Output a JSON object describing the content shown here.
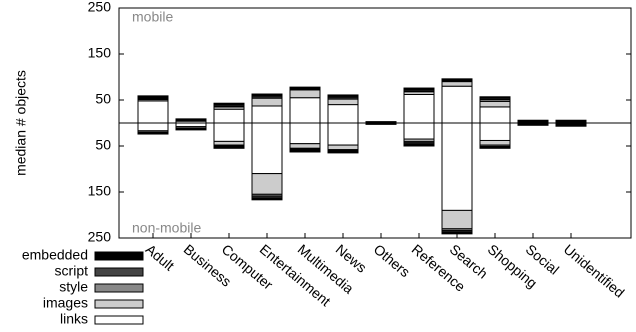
{
  "chart_data": {
    "type": "diverging-stacked-bar",
    "y_label": "median # objects",
    "annotations": [
      "mobile",
      "non-mobile"
    ],
    "categories": [
      "Adult",
      "Business",
      "Computer",
      "Entertainment",
      "Multimedia",
      "News",
      "Others",
      "Reference",
      "Search",
      "Shopping",
      "Social",
      "Unidentified"
    ],
    "ylim": [
      -250,
      250
    ],
    "yticks": [
      {
        "value": -250,
        "label": "250"
      },
      {
        "value": -150,
        "label": "150"
      },
      {
        "value": -50,
        "label": "50"
      },
      50,
      150,
      250
    ],
    "series": [
      {
        "name": "links",
        "color": "#ffffff",
        "values": [
          48,
          4,
          30,
          37,
          55,
          40,
          1,
          62,
          80,
          35,
          1,
          1
        ],
        "values_non_mobile": [
          -17,
          -8,
          -40,
          -110,
          -45,
          -48,
          -1,
          -35,
          -190,
          -38,
          -1,
          -1
        ]
      },
      {
        "name": "images",
        "color": "#cccccc",
        "values": [
          3,
          2,
          5,
          17,
          17,
          12,
          0,
          6,
          10,
          12,
          1,
          1
        ],
        "values_non_mobile": [
          -3,
          -3,
          -8,
          -45,
          -10,
          -10,
          0,
          -5,
          -40,
          -10,
          -1,
          -1
        ]
      },
      {
        "name": "style",
        "color": "#888888",
        "values": [
          2,
          1,
          2,
          3,
          2,
          3,
          0,
          2,
          2,
          4,
          1,
          1
        ],
        "values_non_mobile": [
          -1,
          -2,
          -2,
          -4,
          -2,
          -2,
          0,
          -3,
          -4,
          -3,
          -1,
          -1
        ]
      },
      {
        "name": "script",
        "color": "#444444",
        "values": [
          2,
          1,
          3,
          3,
          2,
          3,
          1,
          3,
          2,
          3,
          1,
          1
        ],
        "values_non_mobile": [
          -1,
          -1,
          -2,
          -4,
          -2,
          -2,
          -1,
          -3,
          -3,
          -2,
          -1,
          -2
        ]
      },
      {
        "name": "embedded",
        "color": "#000000",
        "values": [
          4,
          1,
          3,
          3,
          2,
          3,
          1,
          3,
          2,
          3,
          2,
          2
        ],
        "values_non_mobile": [
          -2,
          -1,
          -3,
          -4,
          -4,
          -3,
          -1,
          -4,
          -4,
          -2,
          -1,
          -2
        ]
      }
    ]
  }
}
